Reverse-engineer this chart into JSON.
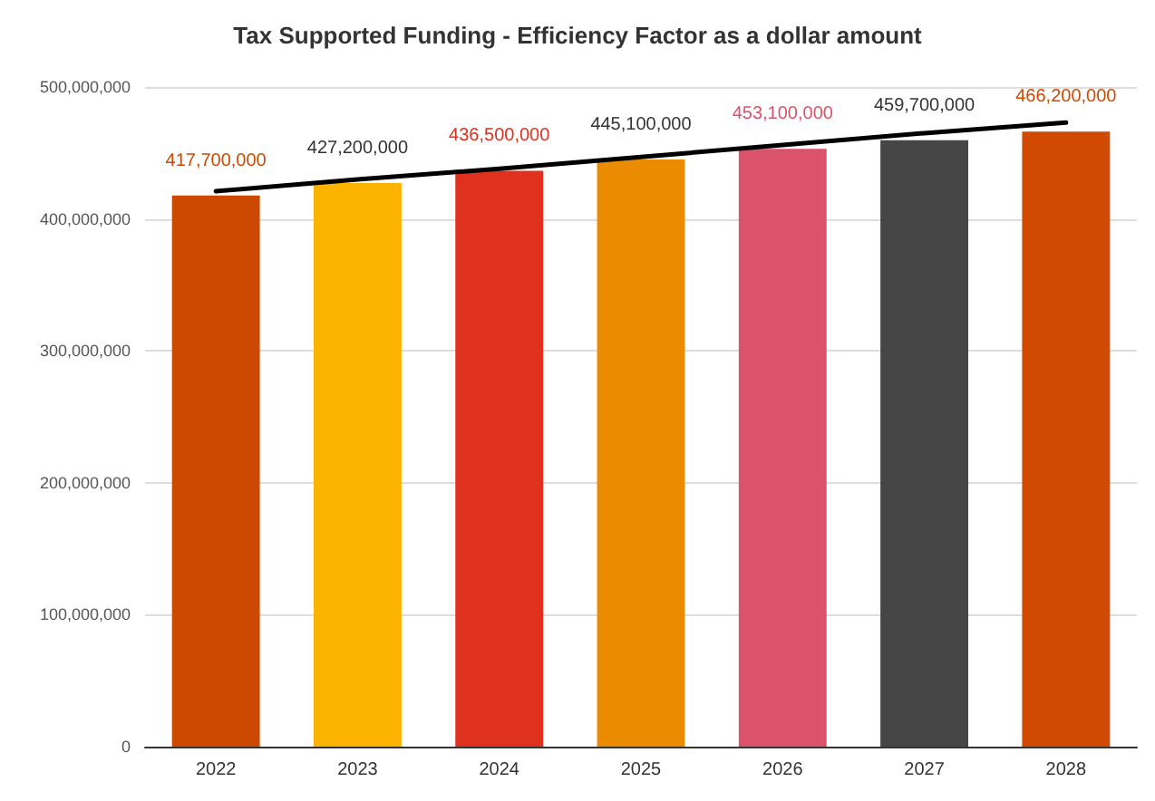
{
  "chart_data": {
    "type": "bar",
    "title": "Tax Supported Funding - Efficiency Factor as a dollar amount",
    "categories": [
      "2022",
      "2023",
      "2024",
      "2025",
      "2026",
      "2027",
      "2028"
    ],
    "series": [
      {
        "values": [
          417700000,
          427200000,
          436500000,
          445100000,
          453100000,
          459700000,
          466200000
        ],
        "value_labels": [
          "417,700,000",
          "427,200,000",
          "436,500,000",
          "445,100,000",
          "453,100,000",
          "459,700,000",
          "466,200,000"
        ],
        "colors": [
          "#cc4a00",
          "#fbb300",
          "#e0301e",
          "#eb8c00",
          "#db536a",
          "#464646",
          "#d04a02"
        ]
      },
      {
        "type": "line",
        "color": "#000000",
        "values": [
          421000000,
          430000000,
          438000000,
          447000000,
          456000000,
          465000000,
          473000000
        ]
      }
    ],
    "ylim": [
      0,
      500000000
    ],
    "yticks": [
      {
        "value": 0,
        "label": "0"
      },
      {
        "value": 100000000,
        "label": "100,000,000"
      },
      {
        "value": 200000000,
        "label": "200,000,000"
      },
      {
        "value": 300000000,
        "label": "300,000,000"
      },
      {
        "value": 400000000,
        "label": "400,000,000"
      },
      {
        "value": 500000000,
        "label": "500,000,000"
      }
    ],
    "grid": "y",
    "marker": "none",
    "line_style": "solid"
  }
}
